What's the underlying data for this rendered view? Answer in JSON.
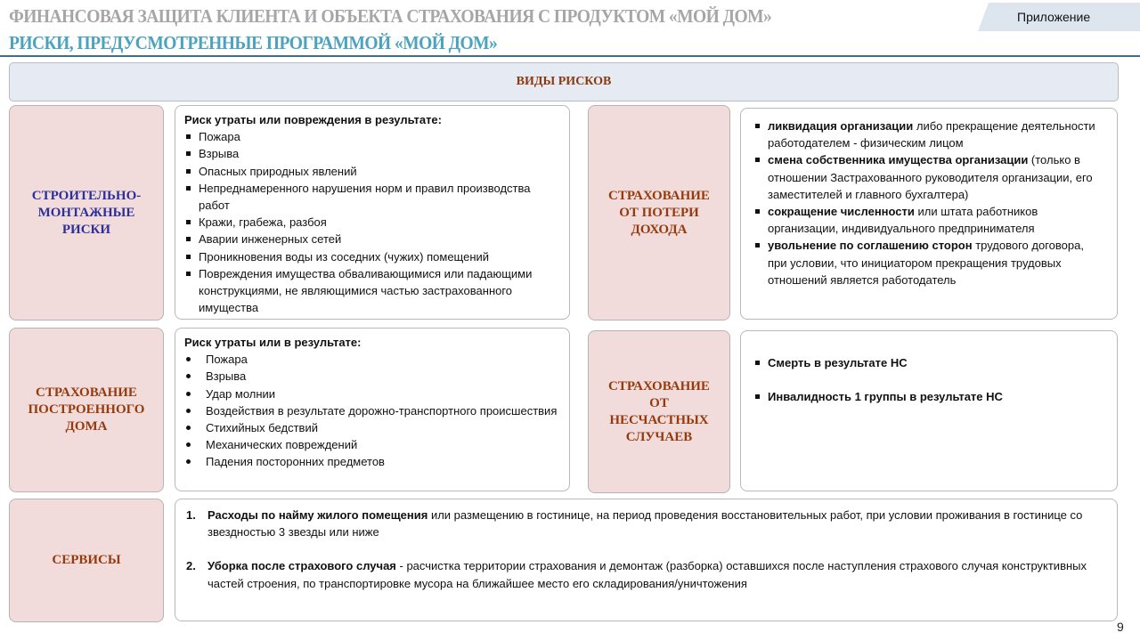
{
  "header": {
    "title": "ФИНАНСОВАЯ ЗАЩИТА КЛИЕНТА И ОБЪЕКТА СТРАХОВАНИЯ С ПРОДУКТОМ «МОЙ ДОМ»",
    "subtitle": "РИСКИ, ПРЕДУСМОТРЕННЫЕ ПРОГРАММОЙ «МОЙ ДОМ»",
    "tab": "Приложение"
  },
  "section_title": "ВИДЫ РИСКОВ",
  "construction": {
    "label": "СТРОИТЕЛЬНО-МОНТАЖНЫЕ РИСКИ",
    "intro": "Риск утраты или повреждения в результате:",
    "items": [
      "Пожара",
      "Взрыва",
      "Опасных природных явлений",
      "Непреднамеренного нарушения норм и правил производства работ",
      "Кражи, грабежа, разбоя",
      "Аварии инженерных сетей",
      "Проникновения воды из соседних (чужих) помещений",
      "Повреждения имущества обваливающимися или падающими конструкциями, не являющимися частью застрахованного имущества"
    ]
  },
  "income": {
    "label": "СТРАХОВАНИЕ ОТ ПОТЕРИ ДОХОДА",
    "items": [
      {
        "bold": "ликвидация организации",
        "text": " либо прекращение деятельности работодателем - физическим лицом"
      },
      {
        "bold": "смена собственника имущества организации",
        "text": " (только в отношении Застрахованного руководителя организации, его заместителей и главного бухгалтера)"
      },
      {
        "bold": " сокращение численности",
        "text": " или штата работников организации, индивидуального предпринимателя"
      },
      {
        "bold": "увольнение по соглашению сторон",
        "text": " трудового договора, при условии, что инициатором прекращения трудовых отношений является работодатель"
      }
    ]
  },
  "house": {
    "label": "СТРАХОВАНИЕ ПОСТРОЕННОГО ДОМА",
    "intro": "Риск утраты или в результате:",
    "items": [
      "Пожара",
      "Взрыва",
      "Удар молнии",
      "Воздействия в результате дорожно-транспортного происшествия",
      "Стихийных бедствий",
      "Механических повреждений",
      "Падения посторонних предметов"
    ]
  },
  "accident": {
    "label": "СТРАХОВАНИЕ ОТ НЕСЧАСТНЫХ СЛУЧАЕВ",
    "items": [
      "Смерть в результате НС",
      "Инвалидность 1 группы в результате НС"
    ]
  },
  "services": {
    "label": "СЕРВИСЫ",
    "items": [
      {
        "num": "1.",
        "bold": "Расходы по найму жилого помещения",
        "text": " или размещению в гостинице, на период проведения восстановительных работ, при условии проживания в гостинице со звездностью 3 звезды или ниже"
      },
      {
        "num": "2.",
        "bold": "Уборка после страхового случая",
        "text": " - расчистка территории страхования и демонтаж (разборка) оставшихся после наступления страхового случая конструктивных частей строения, по транспортировке мусора на ближайшее место его складирования/уничтожения"
      }
    ]
  },
  "page_number": "9"
}
